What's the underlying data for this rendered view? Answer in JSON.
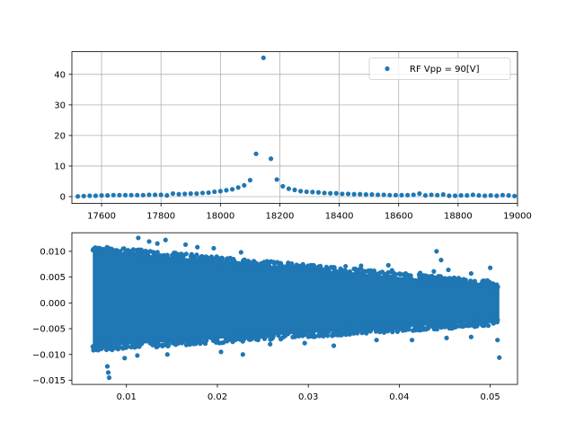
{
  "chart_data": [
    {
      "type": "scatter",
      "title": "",
      "xlabel": "",
      "ylabel": "",
      "xlim": [
        17500,
        19000
      ],
      "ylim": [
        -2.2,
        47.4
      ],
      "grid": true,
      "legend_position": "top-right",
      "x_ticks": [
        "17600",
        "17800",
        "18000",
        "18200",
        "18400",
        "18600",
        "18800",
        "19000"
      ],
      "y_ticks": [
        "0",
        "10",
        "20",
        "30",
        "40"
      ],
      "series": [
        {
          "name": "RF Vpp = 90[V]",
          "color": "#1f77b4",
          "marker": "circle",
          "x": [
            17520,
            17540,
            17560,
            17580,
            17600,
            17620,
            17640,
            17660,
            17680,
            17700,
            17720,
            17740,
            17760,
            17780,
            17800,
            17820,
            17840,
            17860,
            17880,
            17900,
            17920,
            17940,
            17960,
            17980,
            18000,
            18020,
            18040,
            18060,
            18080,
            18100,
            18120,
            18145,
            18170,
            18190,
            18210,
            18230,
            18250,
            18270,
            18290,
            18310,
            18330,
            18350,
            18370,
            18390,
            18410,
            18430,
            18450,
            18470,
            18490,
            18510,
            18530,
            18550,
            18570,
            18590,
            18610,
            18630,
            18650,
            18670,
            18690,
            18710,
            18730,
            18750,
            18770,
            18790,
            18810,
            18830,
            18850,
            18870,
            18890,
            18910,
            18930,
            18950,
            18970,
            18990
          ],
          "y": [
            0.1,
            0.2,
            0.3,
            0.3,
            0.4,
            0.4,
            0.5,
            0.5,
            0.5,
            0.5,
            0.5,
            0.5,
            0.6,
            0.6,
            0.6,
            0.4,
            1.0,
            0.8,
            0.9,
            1.0,
            1.0,
            1.2,
            1.3,
            1.6,
            1.8,
            2.1,
            2.4,
            3.0,
            3.7,
            5.4,
            14.0,
            45.4,
            12.4,
            5.6,
            3.4,
            2.6,
            2.2,
            1.8,
            1.6,
            1.5,
            1.4,
            1.2,
            1.1,
            1.1,
            0.9,
            0.9,
            0.8,
            0.8,
            0.7,
            0.7,
            0.6,
            0.6,
            0.5,
            0.5,
            0.5,
            0.5,
            0.6,
            1.0,
            0.4,
            0.6,
            0.5,
            0.7,
            0.3,
            0.3,
            0.4,
            0.4,
            0.6,
            0.4,
            0.3,
            0.4,
            0.3,
            0.5,
            0.4,
            0.2
          ]
        }
      ]
    },
    {
      "type": "scatter",
      "title": "",
      "xlabel": "",
      "ylabel": "",
      "xlim": [
        0.004,
        0.053
      ],
      "ylim": [
        -0.0158,
        0.0136
      ],
      "grid": false,
      "x_ticks": [
        "0.01",
        "0.02",
        "0.03",
        "0.04",
        "0.05"
      ],
      "y_ticks": [
        "0.010",
        "0.005",
        "0.000",
        "−0.005",
        "−0.010",
        "−0.015"
      ],
      "series": [
        {
          "color": "#1f77b4",
          "marker": "circle",
          "x_range": [
            0.0063,
            0.051
          ],
          "band_upper_start": 0.0103,
          "band_upper_end": 0.0033,
          "band_lower_start": -0.0085,
          "band_lower_end": -0.0035,
          "outliers": [
            {
              "x": 0.0113,
              "y": 0.0126
            },
            {
              "x": 0.0125,
              "y": 0.0119
            },
            {
              "x": 0.0134,
              "y": 0.0115
            },
            {
              "x": 0.0143,
              "y": 0.0122
            },
            {
              "x": 0.0165,
              "y": 0.0113
            },
            {
              "x": 0.0178,
              "y": 0.0108
            },
            {
              "x": 0.0196,
              "y": 0.0106
            },
            {
              "x": 0.0226,
              "y": 0.0098
            },
            {
              "x": 0.028,
              "y": 0.0075
            },
            {
              "x": 0.0341,
              "y": 0.0071
            },
            {
              "x": 0.0358,
              "y": 0.0072
            },
            {
              "x": 0.0392,
              "y": 0.0063
            },
            {
              "x": 0.0388,
              "y": 0.0073
            },
            {
              "x": 0.0423,
              "y": 0.0058
            },
            {
              "x": 0.0438,
              "y": 0.0061
            },
            {
              "x": 0.0441,
              "y": 0.01
            },
            {
              "x": 0.0446,
              "y": 0.0083
            },
            {
              "x": 0.0454,
              "y": 0.0064
            },
            {
              "x": 0.0479,
              "y": 0.0057
            },
            {
              "x": 0.05,
              "y": 0.0068
            },
            {
              "x": 0.0079,
              "y": -0.0123
            },
            {
              "x": 0.008,
              "y": -0.0135
            },
            {
              "x": 0.0081,
              "y": -0.0145
            },
            {
              "x": 0.0098,
              "y": -0.0107
            },
            {
              "x": 0.0112,
              "y": -0.0102
            },
            {
              "x": 0.0145,
              "y": -0.01
            },
            {
              "x": 0.0204,
              "y": -0.0095
            },
            {
              "x": 0.0228,
              "y": -0.01
            },
            {
              "x": 0.0258,
              "y": -0.008
            },
            {
              "x": 0.0296,
              "y": -0.0078
            },
            {
              "x": 0.0328,
              "y": -0.0083
            },
            {
              "x": 0.0375,
              "y": -0.0072
            },
            {
              "x": 0.0414,
              "y": -0.0072
            },
            {
              "x": 0.0452,
              "y": -0.0068
            },
            {
              "x": 0.0479,
              "y": -0.0066
            },
            {
              "x": 0.0508,
              "y": -0.0072
            },
            {
              "x": 0.051,
              "y": -0.0106
            }
          ]
        }
      ]
    }
  ]
}
